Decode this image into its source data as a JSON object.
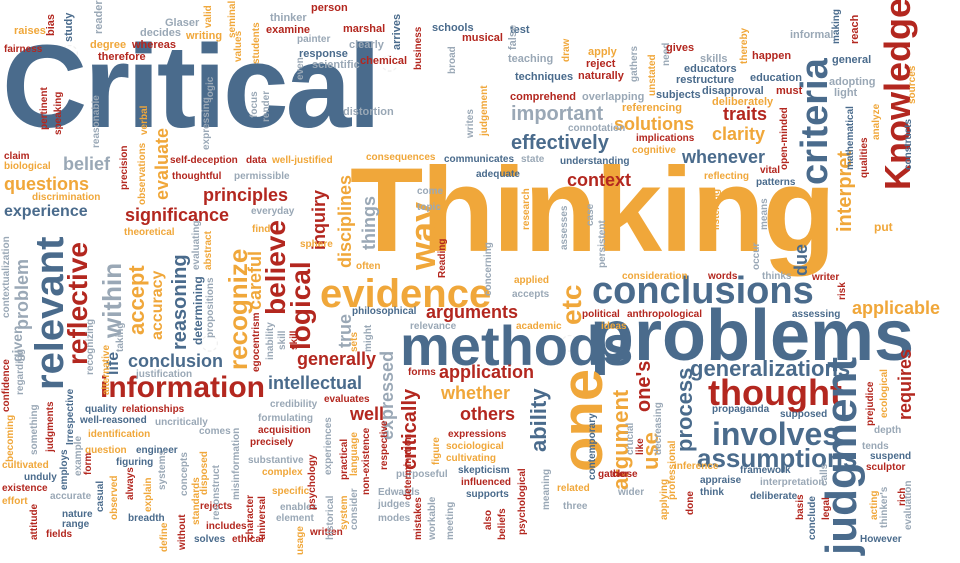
{
  "words": {
    "critical": "Critical",
    "thinking": "Thinking",
    "problems": "problems",
    "methods": "methods",
    "conclusions": "conclusions",
    "evidence": "evidence",
    "knowledge": "Knowledge",
    "criteria": "criteria",
    "judgment": "judgment",
    "relevant": "relevant",
    "information": "information",
    "thought": "thought",
    "involves": "involves",
    "assumptions": "assumptions",
    "generalizations": "generalizations",
    "one": "one",
    "way": "way",
    "etc": "etc",
    "logical": "logical",
    "reflective": "reflective",
    "recognize": "recognize",
    "believe": "believe",
    "accept": "accept",
    "within": "within",
    "reasoning": "reasoning",
    "conclusion": "conclusion",
    "significance": "significance",
    "principles": "principles",
    "experience": "experience",
    "questions": "questions",
    "context": "context",
    "effectively": "effectively",
    "important": "important",
    "solutions": "solutions",
    "clarity": "clarity",
    "traits": "traits",
    "whenever": "whenever",
    "applicable": "applicable",
    "arguments": "arguments",
    "application": "application",
    "whether": "whether",
    "others": "others",
    "intellectual": "intellectual",
    "generally": "generally",
    "well": "well",
    "requires": "requires",
    "process": "process",
    "use": "use",
    "argument": "argument",
    "ability": "ability",
    "expressed": "expressed",
    "critically": "critically",
    "interpret": "interpret",
    "accuracy": "accuracy",
    "careful": "careful",
    "inquiry": "inquiry",
    "belief": "belief",
    "evaluate": "evaluate",
    "problem": "problem",
    "life": "life",
    "true": "true",
    "disciplines": "disciplines",
    "things": "things",
    "ones": "one's",
    "due": "due",
    "put": "put",
    "fairness": "fairness",
    "raises": "raises",
    "study": "study",
    "bias": "bias",
    "reader": "reader",
    "glaser": "Glaser",
    "decides": "decides",
    "writing": "writing",
    "valid": "valid",
    "seminal": "seminal",
    "thinker": "thinker",
    "examine": "examine",
    "person": "person",
    "marshal": "marshal",
    "arrives": "arrives",
    "schools": "schools",
    "musical": "musical",
    "test": "test",
    "false": "false",
    "informal": "informal",
    "making": "making",
    "reach": "reach",
    "degree": "degree",
    "whereas": "whereas",
    "values": "values",
    "students": "students",
    "painter": "painter",
    "clearly": "clearly",
    "response": "response",
    "scientific": "scientific",
    "chemical": "chemical",
    "business": "business",
    "teaching": "teaching",
    "techniques": "techniques",
    "apply": "apply",
    "reject": "reject",
    "naturally": "naturally",
    "gathers": "gathers",
    "unstated": "unstated",
    "need": "need",
    "gives": "gives",
    "skills": "skills",
    "educators": "educators",
    "restructure": "restructure",
    "thereby": "thereby",
    "happen": "happen",
    "education": "education",
    "general": "general",
    "adopting": "adopting",
    "light": "light",
    "sources": "sources",
    "therefore": "therefore",
    "pertinent": "pertinent",
    "speaking": "speaking",
    "distortion": "distortion",
    "comprehend": "comprehend",
    "overlapping": "overlapping",
    "subjects": "subjects",
    "disapproval": "disapproval",
    "deliberately": "deliberately",
    "must": "must",
    "referencing": "referencing",
    "connotation": "connotation",
    "implications": "implications",
    "cognitive": "cognitive",
    "mathematical": "mathematical",
    "qualities": "qualities",
    "analyze": "analyze",
    "constructs": "constructs",
    "claim": "claim",
    "biological": "biological",
    "discrimination": "discrimination",
    "selfdeception": "self-deception",
    "data": "data",
    "welljustified": "well-justified",
    "consequences": "consequences",
    "communicates": "communicates",
    "state": "state",
    "understanding": "understanding",
    "thoughtful": "thoughtful",
    "permissible": "permissible",
    "come": "come",
    "topic": "topic",
    "adequate": "adequate",
    "reflecting": "reflecting",
    "patterns": "patterns",
    "vital": "vital",
    "theoretical": "theoretical",
    "everyday": "everyday",
    "find": "find",
    "sphere": "sphere",
    "often": "often",
    "applied": "applied",
    "accepts": "accepts",
    "consideration": "consideration",
    "words": "words",
    "thinks": "thinks",
    "writer": "writer",
    "risk": "risk",
    "philosophical": "philosophical",
    "political": "political",
    "anthropological": "anthropological",
    "assessing": "assessing",
    "relevance": "relevance",
    "academic": "academic",
    "ideas": "ideas",
    "justification": "justification",
    "forms": "forms",
    "credibility": "credibility",
    "evaluates": "evaluates",
    "formulating": "formulating",
    "acquisition": "acquisition",
    "precisely": "precisely",
    "substantive": "substantive",
    "complex": "complex",
    "specific": "specific",
    "enables": "enables",
    "element": "element",
    "written": "written",
    "modes": "modes",
    "judges": "judges",
    "edwards": "Edwards",
    "quality": "quality",
    "wellreasoned": "well-reasoned",
    "identification": "identification",
    "question": "question",
    "engineer": "engineer",
    "figuring": "figuring",
    "comes": "comes",
    "rejects": "rejects",
    "includes": "includes",
    "ethical": "ethical",
    "solves": "solves",
    "breadth": "breadth",
    "nature": "nature",
    "range": "range",
    "fields": "fields",
    "effort": "effort",
    "attitude": "attitude",
    "existence": "existence",
    "unduly": "unduly",
    "cultivated": "cultivated",
    "accurate": "accurate",
    "expressions": "expressions",
    "sociological": "sociological",
    "cultivating": "cultivating",
    "skepticism": "skepticism",
    "influenced": "influenced",
    "supports": "supports",
    "purposeful": "purposeful",
    "related": "related",
    "three": "three",
    "gather": "gather",
    "wider": "wider",
    "contemporary": "contemporary",
    "close": "close",
    "propaganda": "propaganda",
    "supposed": "supposed",
    "inference": "inference",
    "framework": "framework",
    "appraise": "appraise",
    "interpretation": "interpretation",
    "think": "think",
    "deliberate": "deliberate",
    "tends": "tends",
    "suspend": "suspend",
    "sculptor": "sculptor",
    "depth": "depth",
    "prejudice": "prejudice",
    "however": "However",
    "thinkers": "thinker's",
    "evaluation": "evaluation",
    "basis": "basis",
    "calls": "calls",
    "acting": "acting",
    "rich": "rich",
    "irrespective": "Irrespective",
    "regarding": "regarding",
    "given": "given",
    "confidence": "confidence",
    "something": "something",
    "becoming": "becoming",
    "example": "example",
    "employs": "employs",
    "contextualization": "contextualization",
    "evaluating": "evaluating",
    "abstract": "abstract",
    "determining": "determining",
    "propositions": "propositions",
    "egocentrism": "egocentrism",
    "inability": "inability",
    "sets": "sets",
    "might": "might",
    "psychology": "psychology",
    "historical": "historical",
    "system": "system",
    "practical": "practical",
    "nonexistence": "non-existence",
    "determination": "determination",
    "mistakes": "mistakes",
    "reading": "Reading",
    "concerning": "concerning",
    "meaning": "meaning",
    "uncritically": "uncritically",
    "disposed": "disposed",
    "misinformation": "misinformation",
    "relationships": "relationships",
    "observations": "observations",
    "precision": "precision",
    "expressing": "expressing",
    "logic": "logic",
    "focus": "focus",
    "render": "render",
    "standards": "standards",
    "without": "without",
    "define": "define",
    "universal": "universal",
    "character": "character",
    "usage": "usage",
    "decreasing": "decreasing",
    "crucial": "crucial",
    "like": "like",
    "applying": "applying",
    "professional": "professional",
    "done": "done",
    "assesses": "assesses",
    "case": "case",
    "persistent": "persistent",
    "listening": "listening",
    "occur": "occur",
    "means": "means",
    "openminded": "open-minded",
    "verbal": "verbal",
    "reasonable": "reasonable",
    "alternative": "alternative",
    "taking": "taking",
    "recognizing": "recognizing",
    "also": "also",
    "beliefs": "beliefs",
    "psychological": "psychological",
    "meeting": "meeting",
    "workable": "workable",
    "respective": "respective",
    "language": "language",
    "consider": "consider",
    "experiences": "experiences",
    "reconstruct": "reconstruct",
    "concepts": "concepts",
    "draw": "draw",
    "even": "even",
    "broad": "broad",
    "writes": "writes",
    "research": "research",
    "judgement": "judgement",
    "observed": "observed",
    "explain": "explain",
    "always": "always",
    "casual": "casual",
    "form": "form",
    "judgments": "judgments",
    "systems": "systems",
    "conclude": "conclude",
    "legal": "legal",
    "ecological": "ecological",
    "skill": "skill",
    "figure": "figure"
  }
}
